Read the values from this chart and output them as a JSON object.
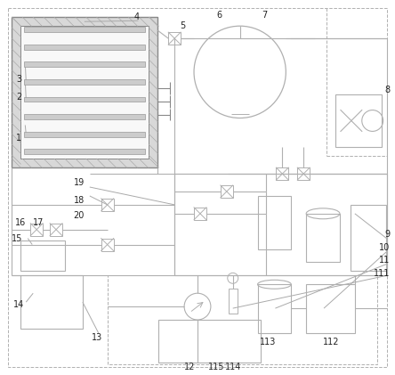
{
  "bg_color": "#ffffff",
  "lc": "#b0b0b0",
  "dc": "#888888",
  "figsize": [
    4.44,
    4.21
  ],
  "dpi": 100
}
